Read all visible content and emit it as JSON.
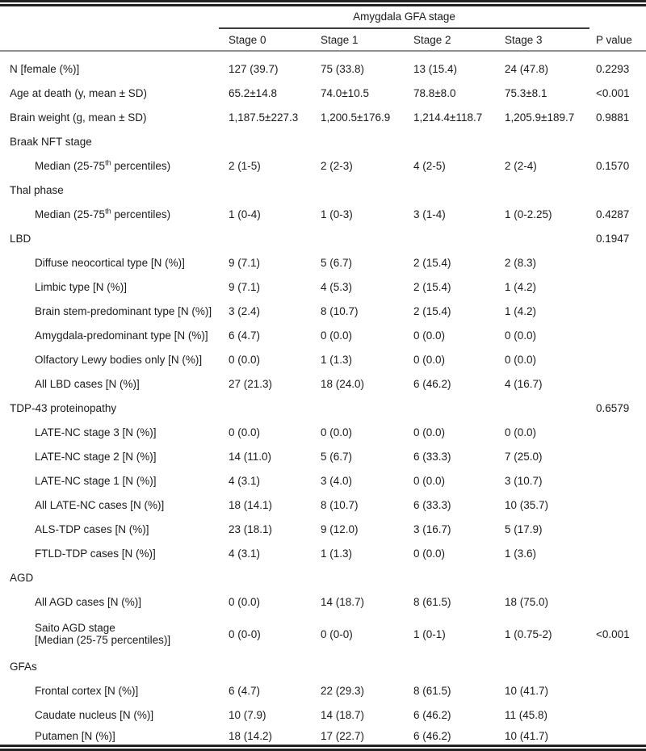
{
  "table": {
    "spanner_label": "Amygdala GFA stage",
    "column_headers": [
      "Stage 0",
      "Stage 1",
      "Stage 2",
      "Stage 3"
    ],
    "p_value_header": "P value",
    "rows": [
      {
        "label": [
          "N [female (%)]"
        ],
        "indent": 0,
        "values": [
          "127 (39.7)",
          "75 (33.8)",
          "13 (15.4)",
          "24 (47.8)"
        ],
        "p": "0.2293"
      },
      {
        "label": [
          "Age at death (y, mean ± SD)"
        ],
        "indent": 0,
        "values": [
          "65.2±14.8",
          "74.0±10.5",
          "78.8±8.0",
          "75.3±8.1"
        ],
        "p": "<0.001"
      },
      {
        "label": [
          "Brain weight (g, mean ± SD)"
        ],
        "indent": 0,
        "values": [
          "1,187.5±227.3",
          "1,200.5±176.9",
          "1,214.4±118.7",
          "1,205.9±189.7"
        ],
        "p": "0.9881"
      },
      {
        "label": [
          "Braak NFT stage"
        ],
        "indent": 0,
        "values": [
          "",
          "",
          "",
          ""
        ],
        "p": ""
      },
      {
        "label": [
          "Median (25-75",
          {
            "text": "th",
            "sup": true
          },
          " percentiles)"
        ],
        "indent": 1,
        "values": [
          "2 (1-5)",
          "2 (2-3)",
          "4 (2-5)",
          "2 (2-4)"
        ],
        "p": "0.1570"
      },
      {
        "label": [
          "Thal phase"
        ],
        "indent": 0,
        "values": [
          "",
          "",
          "",
          ""
        ],
        "p": ""
      },
      {
        "label": [
          "Median (25-75",
          {
            "text": "th",
            "sup": true
          },
          " percentiles)"
        ],
        "indent": 1,
        "values": [
          "1 (0-4)",
          "1 (0-3)",
          "3 (1-4)",
          "1 (0-2.25)"
        ],
        "p": "0.4287"
      },
      {
        "label": [
          "LBD"
        ],
        "indent": 0,
        "values": [
          "",
          "",
          "",
          ""
        ],
        "p": "0.1947"
      },
      {
        "label": [
          "Diffuse neocortical type [N (%)]"
        ],
        "indent": 1,
        "values": [
          "9 (7.1)",
          "5 (6.7)",
          "2 (15.4)",
          "2 (8.3)"
        ],
        "p": ""
      },
      {
        "label": [
          "Limbic type [N (%)]"
        ],
        "indent": 1,
        "values": [
          "9 (7.1)",
          "4 (5.3)",
          "2 (15.4)",
          "1 (4.2)"
        ],
        "p": ""
      },
      {
        "label": [
          "Brain stem-predominant type [N (%)]"
        ],
        "indent": 1,
        "values": [
          "3 (2.4)",
          "8 (10.7)",
          "2 (15.4)",
          "1 (4.2)"
        ],
        "p": ""
      },
      {
        "label": [
          "Amygdala-predominant type [N (%)]"
        ],
        "indent": 1,
        "values": [
          "6 (4.7)",
          "0 (0.0)",
          "0 (0.0)",
          "0 (0.0)"
        ],
        "p": ""
      },
      {
        "label": [
          "Olfactory Lewy bodies only [N (%)]"
        ],
        "indent": 1,
        "values": [
          "0 (0.0)",
          "1 (1.3)",
          "0 (0.0)",
          "0 (0.0)"
        ],
        "p": ""
      },
      {
        "label": [
          "All LBD cases [N (%)]"
        ],
        "indent": 1,
        "values": [
          "27 (21.3)",
          "18 (24.0)",
          "6 (46.2)",
          "4 (16.7)"
        ],
        "p": ""
      },
      {
        "label": [
          "TDP-43 proteinopathy"
        ],
        "indent": 0,
        "values": [
          "",
          "",
          "",
          ""
        ],
        "p": "0.6579"
      },
      {
        "label": [
          "LATE-NC stage 3 [N (%)]"
        ],
        "indent": 1,
        "values": [
          "0 (0.0)",
          "0 (0.0)",
          "0 (0.0)",
          "0 (0.0)"
        ],
        "p": ""
      },
      {
        "label": [
          "LATE-NC stage 2 [N (%)]"
        ],
        "indent": 1,
        "values": [
          "14 (11.0)",
          "5 (6.7)",
          "6 (33.3)",
          "7 (25.0)"
        ],
        "p": ""
      },
      {
        "label": [
          "LATE-NC stage 1 [N (%)]"
        ],
        "indent": 1,
        "values": [
          "4 (3.1)",
          "3 (4.0)",
          "0 (0.0)",
          "3 (10.7)"
        ],
        "p": ""
      },
      {
        "label": [
          "All LATE-NC cases [N (%)]"
        ],
        "indent": 1,
        "values": [
          "18 (14.1)",
          "8 (10.7)",
          "6 (33.3)",
          "10 (35.7)"
        ],
        "p": ""
      },
      {
        "label": [
          "ALS-TDP cases [N (%)]"
        ],
        "indent": 1,
        "values": [
          "23 (18.1)",
          "9 (12.0)",
          "3 (16.7)",
          "5 (17.9)"
        ],
        "p": ""
      },
      {
        "label": [
          "FTLD-TDP cases [N (%)]"
        ],
        "indent": 1,
        "values": [
          "4 (3.1)",
          "1 (1.3)",
          "0 (0.0)",
          "1 (3.6)"
        ],
        "p": ""
      },
      {
        "label": [
          "AGD"
        ],
        "indent": 0,
        "values": [
          "",
          "",
          "",
          ""
        ],
        "p": ""
      },
      {
        "label": [
          "All AGD cases [N (%)]"
        ],
        "indent": 1,
        "values": [
          "0 (0.0)",
          "14 (18.7)",
          "8 (61.5)",
          "18 (75.0)"
        ],
        "p": ""
      },
      {
        "label": [
          "Saito AGD stage",
          {
            "break": true
          },
          "[Median (25-75 percentiles)]"
        ],
        "indent": 1,
        "values": [
          "0 (0-0)",
          "0 (0-0)",
          "1 (0-1)",
          "1 (0.75-2)"
        ],
        "p": "<0.001"
      },
      {
        "label": [
          "GFAs"
        ],
        "indent": 0,
        "values": [
          "",
          "",
          "",
          ""
        ],
        "p": ""
      },
      {
        "label": [
          "Frontal cortex [N (%)]"
        ],
        "indent": 1,
        "values": [
          "6 (4.7)",
          "22 (29.3)",
          "8 (61.5)",
          "10 (41.7)"
        ],
        "p": ""
      },
      {
        "label": [
          "Caudate nucleus [N (%)]"
        ],
        "indent": 1,
        "values": [
          "10 (7.9)",
          "14 (18.7)",
          "6 (46.2)",
          "11 (45.8)"
        ],
        "p": ""
      },
      {
        "label": [
          "Putamen [N (%)]"
        ],
        "indent": 1,
        "values": [
          "18 (14.2)",
          "17 (22.7)",
          "6 (46.2)",
          "10 (41.7)"
        ],
        "p": ""
      }
    ]
  }
}
